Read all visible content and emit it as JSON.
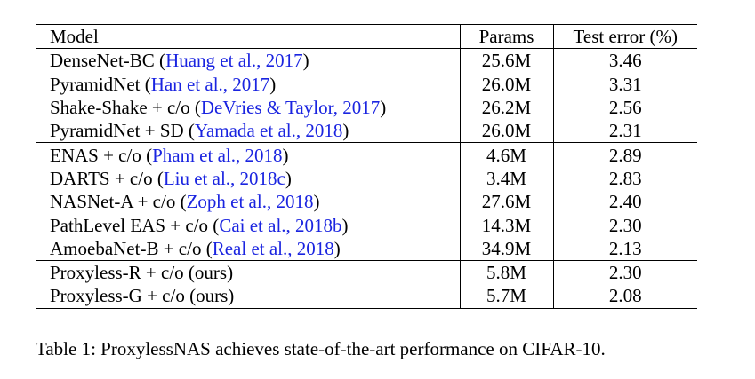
{
  "table": {
    "headers": {
      "model": "Model",
      "params": "Params",
      "test_error": "Test error (%)"
    },
    "rows": [
      {
        "name": "DenseNet-BC (",
        "cite": "Huang et al., 2017",
        "close": ")",
        "params": "25.6M",
        "error": "3.46"
      },
      {
        "name": "PyramidNet (",
        "cite": "Han et al., 2017",
        "close": ")",
        "params": "26.0M",
        "error": "3.31"
      },
      {
        "name": "Shake-Shake + c/o (",
        "cite": "DeVries & Taylor, 2017",
        "close": ")",
        "params": "26.2M",
        "error": "2.56"
      },
      {
        "name": "PyramidNet + SD (",
        "cite": "Yamada et al., 2018",
        "close": ")",
        "params": "26.0M",
        "error": "2.31"
      },
      {
        "name": "ENAS + c/o (",
        "cite": "Pham et al., 2018",
        "close": ")",
        "params": "4.6M",
        "error": "2.89"
      },
      {
        "name": "DARTS + c/o (",
        "cite": "Liu et al., 2018c",
        "close": ")",
        "params": "3.4M",
        "error": "2.83"
      },
      {
        "name": "NASNet-A + c/o (",
        "cite": "Zoph et al., 2018",
        "close": ")",
        "params": "27.6M",
        "error": "2.40"
      },
      {
        "name": "PathLevel EAS + c/o (",
        "cite": "Cai et al., 2018b",
        "close": ")",
        "params": "14.3M",
        "error": "2.30"
      },
      {
        "name": "AmoebaNet-B + c/o (",
        "cite": "Real et al., 2018",
        "close": ")",
        "params": "34.9M",
        "error": "2.13"
      },
      {
        "name": "Proxyless-R + c/o (ours)",
        "cite": "",
        "close": "",
        "params": "5.8M",
        "error": "2.30"
      },
      {
        "name": "Proxyless-G + c/o (ours)",
        "cite": "",
        "close": "",
        "params": "5.7M",
        "error": "2.08"
      }
    ]
  },
  "caption": "Table 1: ProxylessNAS achieves state-of-the-art performance on CIFAR-10.",
  "colors": {
    "citation": "#1a24e0",
    "text": "#000000"
  }
}
